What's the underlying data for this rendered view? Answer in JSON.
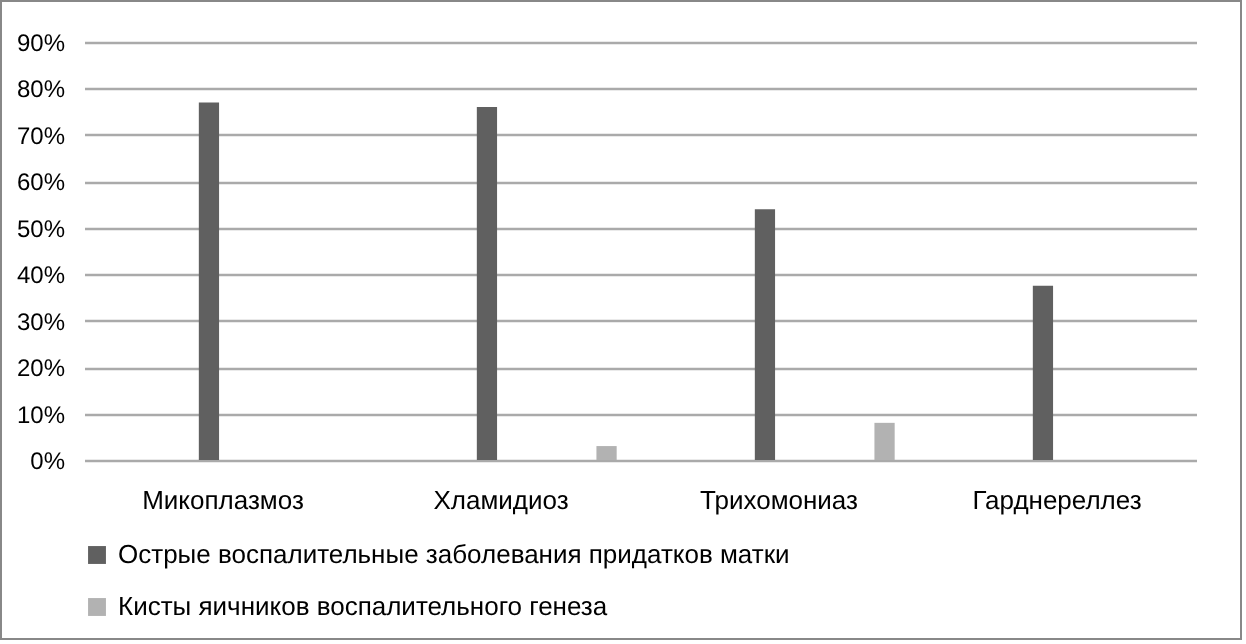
{
  "chart_data": {
    "type": "bar",
    "categories": [
      "Микоплазмоз",
      "Хламидиоз",
      "Трихомониаз",
      "Гарднереллез"
    ],
    "series": [
      {
        "name": "Острые воспалительные заболевания придатков матки",
        "color": "#606060",
        "values": [
          77,
          76,
          54,
          37.5
        ]
      },
      {
        "name": "Кисты яичников воспалительного генеза",
        "color": "#b2b2b2",
        "values": [
          null,
          3,
          8,
          null
        ]
      }
    ],
    "ylim": [
      0,
      90
    ],
    "yticks": [
      {
        "value": 0,
        "label": "0%"
      },
      {
        "value": 10,
        "label": "10%"
      },
      {
        "value": 20,
        "label": "20%"
      },
      {
        "value": 30,
        "label": "30%"
      },
      {
        "value": 40,
        "label": "40%"
      },
      {
        "value": 50,
        "label": "50%"
      },
      {
        "value": 60,
        "label": "60%"
      },
      {
        "value": 70,
        "label": "70%"
      },
      {
        "value": 80,
        "label": "80%"
      },
      {
        "value": 90,
        "label": "90%"
      }
    ],
    "grid": "y",
    "legend": "bottom"
  }
}
